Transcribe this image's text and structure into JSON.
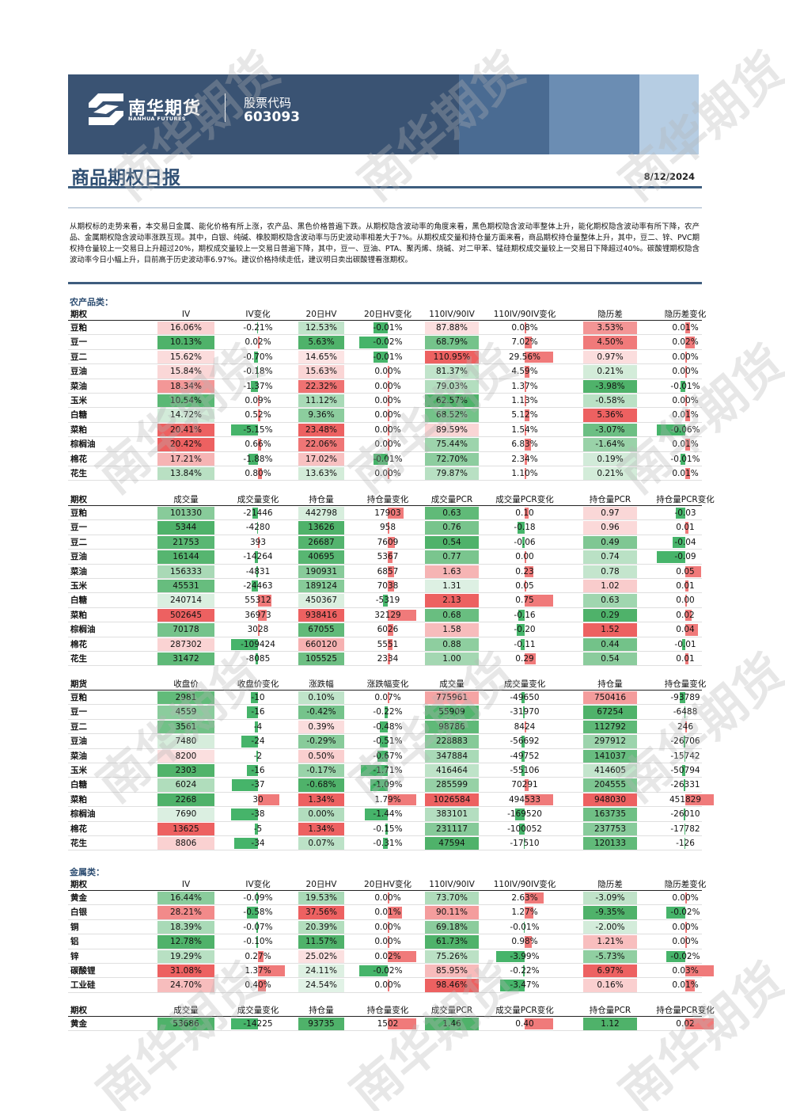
{
  "header": {
    "company_cn": "南华期货",
    "company_en": "NANHUA FUTURES",
    "code_label": "股票代码",
    "code": "603093"
  },
  "report": {
    "title": "商品期权日报",
    "date": "8/12/2024"
  },
  "summary": "从期权标的走势来看，本交易日金属、能化价格有所上涨，农产品、黑色价格普遍下跌。从期权隐含波动率的角度来看，黑色期权隐含波动率整体上升，能化期权隐含波动率有所下降，农产品、金属期权隐含波动率涨跌互现。其中，白银、纯碱、橡胶期权隐含波动率与历史波动率相差大于7%。从期权成交量和持仓量方面来看，商品期权持仓量整体上升，其中，豆二、锌、PVC期权持仓量较上一交易日上升超过20%，期权成交量较上一交易日普遍下降，其中，豆一、豆油、PTA、聚丙烯、烧碱、对二甲苯、锰硅期权成交量较上一交易日下降超过40%。碳酸锂期权隐含波动率今日小幅上升，目前高于历史波动率6.97%。建议价格持续走低，建议明日卖出碳酸锂看涨期权。",
  "colors": {
    "red": "#f07a7a",
    "green": "#46b46a",
    "brand": "#2f4f73"
  },
  "agri_caption": "农产品类：",
  "metal_caption": "金属类：",
  "vol_headers": [
    "期权",
    "IV",
    "IV变化",
    "20日HV",
    "20日HV变化",
    "110IV/90IV",
    "110IV/90IV变化",
    "隐历差",
    "隐历差变化"
  ],
  "oi_headers": [
    "期权",
    "成交量",
    "成交量变化",
    "持仓量",
    "持仓量变化",
    "成交量PCR",
    "成交量PCR变化",
    "持仓量PCR",
    "持仓量PCR变化"
  ],
  "fut_headers": [
    "期货",
    "收盘价",
    "收盘价变化",
    "涨跌幅",
    "涨跌幅变化",
    "成交量",
    "成交量变化",
    "持仓量",
    "持仓量变化"
  ],
  "agri_vol": [
    [
      "豆粕",
      "16.06%",
      "-0.21%",
      "12.53%",
      "-0.01%",
      "87.88%",
      "0.08%",
      "3.53%",
      "0.01%"
    ],
    [
      "豆一",
      "10.13%",
      "0.02%",
      "5.63%",
      "-0.02%",
      "68.79%",
      "7.02%",
      "4.50%",
      "0.02%"
    ],
    [
      "豆二",
      "15.62%",
      "-0.70%",
      "14.65%",
      "-0.01%",
      "110.95%",
      "29.56%",
      "0.97%",
      "0.00%"
    ],
    [
      "豆油",
      "15.84%",
      "-0.18%",
      "15.63%",
      "0.00%",
      "81.37%",
      "4.59%",
      "0.21%",
      "0.00%"
    ],
    [
      "菜油",
      "18.34%",
      "-1.37%",
      "22.32%",
      "0.00%",
      "79.03%",
      "1.37%",
      "-3.98%",
      "-0.01%"
    ],
    [
      "玉米",
      "10.54%",
      "0.09%",
      "11.12%",
      "0.00%",
      "62.57%",
      "1.13%",
      "-0.58%",
      "0.00%"
    ],
    [
      "白糖",
      "14.72%",
      "0.52%",
      "9.36%",
      "0.00%",
      "68.52%",
      "5.12%",
      "5.36%",
      "0.01%"
    ],
    [
      "菜粕",
      "20.41%",
      "-5.15%",
      "23.48%",
      "0.00%",
      "89.59%",
      "1.54%",
      "-3.07%",
      "-0.06%"
    ],
    [
      "棕榈油",
      "20.42%",
      "0.66%",
      "22.06%",
      "0.00%",
      "75.44%",
      "6.83%",
      "-1.64%",
      "0.01%"
    ],
    [
      "棉花",
      "17.21%",
      "-1.88%",
      "17.02%",
      "-0.01%",
      "72.70%",
      "2.34%",
      "0.19%",
      "-0.01%"
    ],
    [
      "花生",
      "13.84%",
      "0.80%",
      "13.63%",
      "0.00%",
      "79.87%",
      "1.10%",
      "0.21%",
      "0.01%"
    ]
  ],
  "agri_oi": [
    [
      "豆粕",
      "101330",
      "-21446",
      "442798",
      "17903",
      "0.63",
      "0.10",
      "0.97",
      "-0.03"
    ],
    [
      "豆一",
      "5344",
      "-4280",
      "13626",
      "958",
      "0.76",
      "-0.18",
      "0.96",
      "0.01"
    ],
    [
      "豆二",
      "21753",
      "393",
      "26687",
      "7609",
      "0.54",
      "-0.06",
      "0.49",
      "-0.04"
    ],
    [
      "豆油",
      "16144",
      "-14264",
      "40695",
      "5367",
      "0.77",
      "0.00",
      "0.74",
      "-0.09"
    ],
    [
      "菜油",
      "156333",
      "-4831",
      "190931",
      "6857",
      "1.63",
      "0.23",
      "0.78",
      "0.05"
    ],
    [
      "玉米",
      "45531",
      "-24463",
      "189124",
      "7038",
      "1.31",
      "0.05",
      "1.02",
      "0.01"
    ],
    [
      "白糖",
      "240714",
      "55312",
      "450367",
      "-5319",
      "2.13",
      "0.75",
      "0.63",
      "0.00"
    ],
    [
      "菜粕",
      "502645",
      "36973",
      "938416",
      "32129",
      "0.68",
      "-0.16",
      "0.29",
      "0.02"
    ],
    [
      "棕榈油",
      "70178",
      "3028",
      "67055",
      "6026",
      "1.58",
      "-0.20",
      "1.52",
      "0.04"
    ],
    [
      "棉花",
      "287302",
      "-109424",
      "660120",
      "5551",
      "0.88",
      "-0.11",
      "0.44",
      "-0.01"
    ],
    [
      "花生",
      "31472",
      "-8085",
      "105525",
      "2334",
      "1.00",
      "0.29",
      "0.54",
      "0.01"
    ]
  ],
  "agri_fut": [
    [
      "豆粕",
      "2981",
      "-10",
      "0.10%",
      "0.07%",
      "775961",
      "-49650",
      "750416",
      "-93789"
    ],
    [
      "豆一",
      "4559",
      "-16",
      "-0.42%",
      "-0.22%",
      "55909",
      "-31970",
      "67254",
      "-6488"
    ],
    [
      "豆二",
      "3561",
      "-4",
      "0.39%",
      "-0.48%",
      "98786",
      "8424",
      "112792",
      "246"
    ],
    [
      "豆油",
      "7480",
      "-24",
      "-0.29%",
      "-0.51%",
      "228883",
      "-56692",
      "297912",
      "-26706"
    ],
    [
      "菜油",
      "8200",
      "-2",
      "0.50%",
      "-0.67%",
      "347884",
      "-49752",
      "141037",
      "-15742"
    ],
    [
      "玉米",
      "2303",
      "-16",
      "-0.17%",
      "-1.71%",
      "416464",
      "-55106",
      "414605",
      "-50794"
    ],
    [
      "白糖",
      "6024",
      "-37",
      "-0.68%",
      "-1.09%",
      "285599",
      "70291",
      "204555",
      "-26331"
    ],
    [
      "菜粕",
      "2268",
      "30",
      "1.34%",
      "1.79%",
      "1026584",
      "494533",
      "948030",
      "451829"
    ],
    [
      "棕榈油",
      "7690",
      "-38",
      "0.00%",
      "-1.44%",
      "383101",
      "-169520",
      "163735",
      "-26010"
    ],
    [
      "棉花",
      "13625",
      "-5",
      "1.34%",
      "-0.15%",
      "231117",
      "-100052",
      "237753",
      "-17782"
    ],
    [
      "花生",
      "8806",
      "-34",
      "0.07%",
      "-0.31%",
      "47594",
      "-17510",
      "120133",
      "-126"
    ]
  ],
  "metal_vol": [
    [
      "黄金",
      "16.44%",
      "-0.09%",
      "19.53%",
      "0.00%",
      "73.70%",
      "2.63%",
      "-3.09%",
      "0.00%"
    ],
    [
      "白银",
      "28.21%",
      "-0.58%",
      "37.56%",
      "0.01%",
      "90.11%",
      "1.27%",
      "-9.35%",
      "-0.02%"
    ],
    [
      "铜",
      "18.39%",
      "-0.07%",
      "20.39%",
      "0.00%",
      "69.18%",
      "-0.01%",
      "-2.00%",
      "0.00%"
    ],
    [
      "铝",
      "12.78%",
      "-0.10%",
      "11.57%",
      "0.00%",
      "61.73%",
      "0.98%",
      "1.21%",
      "0.00%"
    ],
    [
      "锌",
      "19.29%",
      "0.27%",
      "25.02%",
      "0.02%",
      "75.26%",
      "-3.99%",
      "-5.73%",
      "-0.02%"
    ],
    [
      "碳酸锂",
      "31.08%",
      "1.37%",
      "24.11%",
      "-0.02%",
      "85.95%",
      "-0.22%",
      "6.97%",
      "0.03%"
    ],
    [
      "工业硅",
      "24.70%",
      "0.40%",
      "24.54%",
      "0.00%",
      "98.46%",
      "-3.47%",
      "0.16%",
      "0.01%"
    ]
  ],
  "metal_oi": [
    [
      "黄金",
      "53686",
      "-14225",
      "93735",
      "1502",
      "1.46",
      "0.40",
      "1.12",
      "0.02"
    ]
  ]
}
